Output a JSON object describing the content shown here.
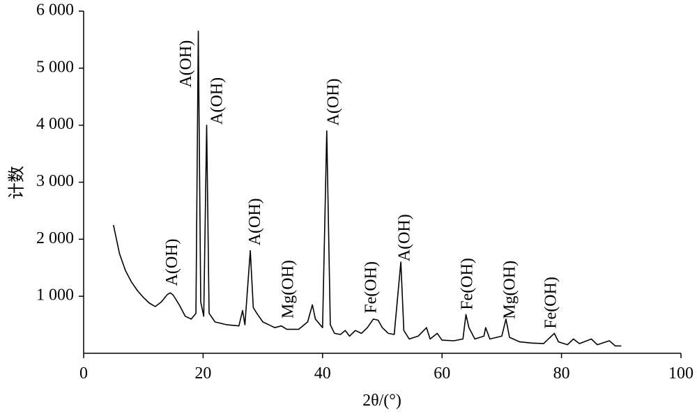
{
  "chart_data": {
    "type": "line",
    "xlabel": "2θ/(°)",
    "ylabel": "计数",
    "xlim": [
      0,
      100
    ],
    "xticks": [
      0,
      20,
      40,
      60,
      80,
      100
    ],
    "ylim": [
      0,
      6000
    ],
    "yticks": [
      {
        "value": 1000,
        "label": "1 000"
      },
      {
        "value": 2000,
        "label": "2 000"
      },
      {
        "value": 3000,
        "label": "3 000"
      },
      {
        "value": 4000,
        "label": "4 000"
      },
      {
        "value": 5000,
        "label": "5 000"
      },
      {
        "value": 6000,
        "label": "6 000"
      }
    ],
    "color": "#000000",
    "x": [
      5,
      6,
      7,
      8,
      9,
      10,
      11,
      12,
      13,
      14,
      14.5,
      15,
      16,
      17,
      18,
      18.8,
      19.2,
      19.6,
      20.1,
      20.6,
      21,
      22,
      24,
      26,
      26.6,
      27,
      27.9,
      28.4,
      29,
      30,
      32,
      33.1,
      34,
      36,
      37.5,
      38.3,
      38.8,
      40,
      40.7,
      41.3,
      42,
      43,
      43.8,
      44.5,
      45.5,
      46.5,
      47.5,
      48.5,
      49.3,
      50,
      51,
      52,
      53.1,
      53.6,
      54.5,
      56,
      57.4,
      58,
      59.2,
      60,
      62,
      63.5,
      64,
      64.5,
      65.5,
      67,
      67.3,
      68,
      70,
      70.7,
      71.3,
      73,
      75,
      77,
      78.8,
      79.5,
      81,
      82,
      83,
      85,
      86,
      88,
      89,
      90
    ],
    "values": [
      2250,
      1750,
      1450,
      1250,
      1100,
      980,
      880,
      820,
      900,
      1030,
      1060,
      1020,
      850,
      650,
      600,
      700,
      5650,
      900,
      650,
      4000,
      700,
      550,
      500,
      480,
      750,
      500,
      1800,
      800,
      700,
      550,
      450,
      480,
      420,
      420,
      550,
      850,
      600,
      450,
      3900,
      500,
      350,
      330,
      400,
      300,
      400,
      350,
      450,
      600,
      580,
      450,
      350,
      330,
      1600,
      400,
      250,
      300,
      450,
      250,
      350,
      230,
      220,
      250,
      680,
      450,
      250,
      300,
      450,
      250,
      300,
      600,
      280,
      200,
      180,
      170,
      350,
      200,
      150,
      250,
      170,
      250,
      150,
      220,
      130,
      130
    ],
    "annotations": [
      {
        "text": "A(OH)",
        "x": 15.0,
        "y": 1180
      },
      {
        "text": "A(OH)",
        "x": 17.3,
        "y": 4660
      },
      {
        "text": "A(OH)",
        "x": 22.5,
        "y": 4010
      },
      {
        "text": "A(OH)",
        "x": 28.9,
        "y": 1890
      },
      {
        "text": "Mg(OH)",
        "x": 34.4,
        "y": 610
      },
      {
        "text": "A(OH)",
        "x": 42.0,
        "y": 3990
      },
      {
        "text": "Fe(OH)",
        "x": 48.3,
        "y": 700
      },
      {
        "text": "A(OH)",
        "x": 53.9,
        "y": 1610
      },
      {
        "text": "Fe(OH)",
        "x": 64.4,
        "y": 760
      },
      {
        "text": "Mg(OH)",
        "x": 71.5,
        "y": 600
      },
      {
        "text": "Fe(OH)",
        "x": 78.4,
        "y": 430
      }
    ]
  }
}
